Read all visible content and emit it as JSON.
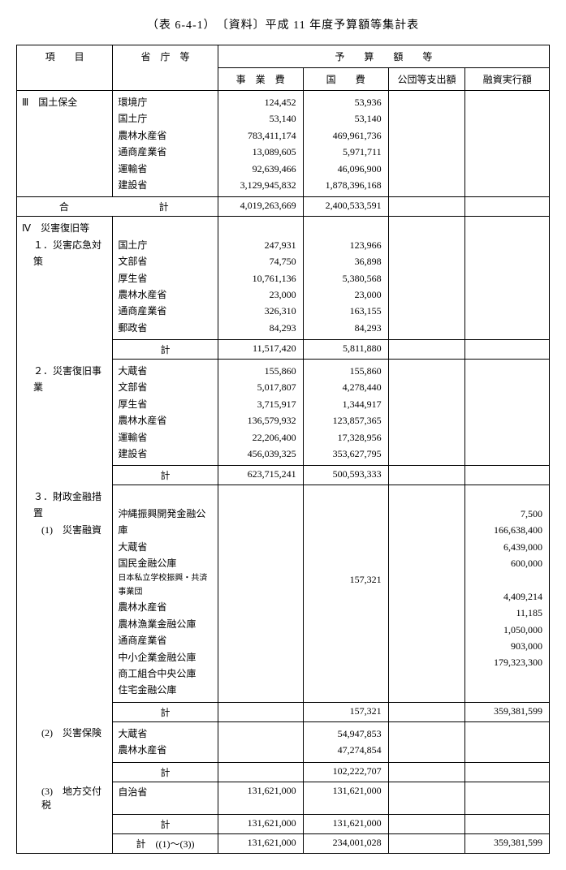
{
  "title": "（表 6-4-1）　〔資料〕平成 11 年度予算額等集計表",
  "header": {
    "item": "項　　目",
    "agency": "省　庁　等",
    "budget_group": "予　　算　　額　　等",
    "col1": "事　業　費",
    "col2": "国　　費",
    "col3": "公団等支出額",
    "col4": "融資実行額"
  },
  "section3": {
    "label": "Ⅲ　国土保全",
    "rows": [
      {
        "agency": "環境庁",
        "c1": "124,452",
        "c2": "53,936"
      },
      {
        "agency": "国土庁",
        "c1": "53,140",
        "c2": "53,140"
      },
      {
        "agency": "農林水産省",
        "c1": "783,411,174",
        "c2": "469,961,736"
      },
      {
        "agency": "通商産業省",
        "c1": "13,089,605",
        "c2": "5,971,711"
      },
      {
        "agency": "運輸省",
        "c1": "92,639,466",
        "c2": "46,096,900"
      },
      {
        "agency": "建設省",
        "c1": "3,129,945,832",
        "c2": "1,878,396,168"
      }
    ],
    "total_label_left": "合",
    "total_label_right": "計",
    "total": {
      "c1": "4,019,263,669",
      "c2": "2,400,533,591"
    }
  },
  "section4": {
    "label": "Ⅳ　災害復旧等",
    "sub1": {
      "label": "１．災害応急対策",
      "rows": [
        {
          "agency": "国土庁",
          "c1": "247,931",
          "c2": "123,966"
        },
        {
          "agency": "文部省",
          "c1": "74,750",
          "c2": "36,898"
        },
        {
          "agency": "厚生省",
          "c1": "10,761,136",
          "c2": "5,380,568"
        },
        {
          "agency": "農林水産省",
          "c1": "23,000",
          "c2": "23,000"
        },
        {
          "agency": "通商産業省",
          "c1": "326,310",
          "c2": "163,155"
        },
        {
          "agency": "郵政省",
          "c1": "84,293",
          "c2": "84,293"
        }
      ],
      "subtotal": {
        "label": "計",
        "c1": "11,517,420",
        "c2": "5,811,880"
      }
    },
    "sub2": {
      "label": "２．災害復旧事業",
      "rows": [
        {
          "agency": "大蔵省",
          "c1": "155,860",
          "c2": "155,860"
        },
        {
          "agency": "文部省",
          "c1": "5,017,807",
          "c2": "4,278,440"
        },
        {
          "agency": "厚生省",
          "c1": "3,715,917",
          "c2": "1,344,917"
        },
        {
          "agency": "農林水産省",
          "c1": "136,579,932",
          "c2": "123,857,365"
        },
        {
          "agency": "運輸省",
          "c1": "22,206,400",
          "c2": "17,328,956"
        },
        {
          "agency": "建設省",
          "c1": "456,039,325",
          "c2": "353,627,795"
        }
      ],
      "subtotal": {
        "label": "計",
        "c1": "623,715,241",
        "c2": "500,593,333"
      }
    },
    "sub3": {
      "label": "３．財政金融措置",
      "p1": {
        "label": "(1)　災害融資",
        "rows": [
          {
            "agency": "沖縄振興開発金融公庫",
            "c4": "7,500"
          },
          {
            "agency": "大蔵省",
            "c4": "166,638,400"
          },
          {
            "agency": "国民金融公庫",
            "c4": "6,439,000"
          },
          {
            "agency": "日本私立学校振興・共済事業団",
            "small": true,
            "c4": "600,000"
          },
          {
            "agency": "農林水産省",
            "c2": "157,321"
          },
          {
            "agency": "農林漁業金融公庫",
            "c4": "4,409,214"
          },
          {
            "agency": "通商産業省",
            "c4": "11,185"
          },
          {
            "agency": "中小企業金融公庫",
            "c4": "1,050,000"
          },
          {
            "agency": "商工組合中央公庫",
            "c4": "903,000"
          },
          {
            "agency": "住宅金融公庫",
            "c4": "179,323,300"
          }
        ],
        "subtotal": {
          "label": "計",
          "c2": "157,321",
          "c4": "359,381,599"
        }
      },
      "p2": {
        "label": "(2)　災害保険",
        "rows": [
          {
            "agency": "大蔵省",
            "c2": "54,947,853"
          },
          {
            "agency": "農林水産省",
            "c2": "47,274,854"
          }
        ],
        "subtotal": {
          "label": "計",
          "c2": "102,222,707"
        }
      },
      "p3": {
        "label": "(3)　地方交付税",
        "rows": [
          {
            "agency": "自治省",
            "c1": "131,621,000",
            "c2": "131,621,000"
          }
        ],
        "subtotal": {
          "label": "計",
          "c1": "131,621,000",
          "c2": "131,621,000"
        }
      },
      "total": {
        "label": "計　((1)～(3))",
        "c1": "131,621,000",
        "c2": "234,001,028",
        "c4": "359,381,599"
      }
    }
  }
}
